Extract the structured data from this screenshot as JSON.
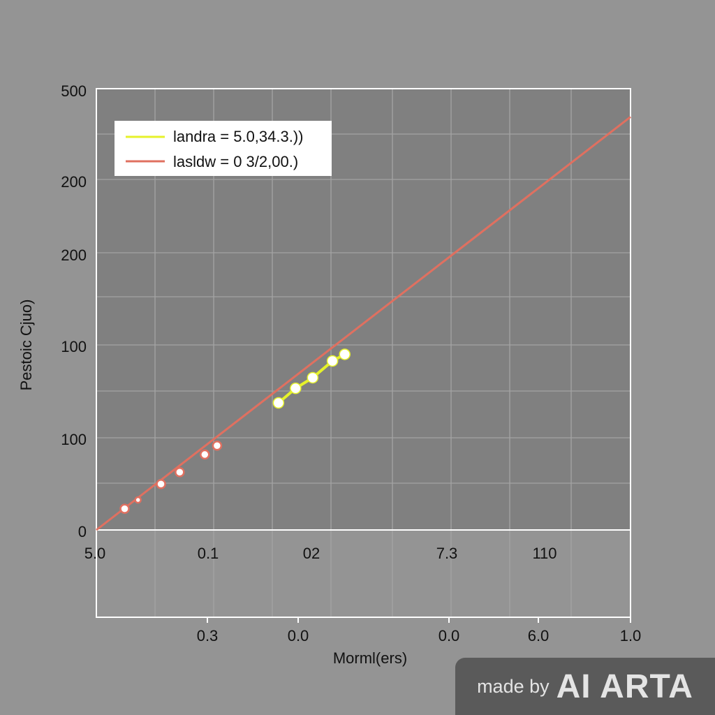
{
  "chart_data": {
    "type": "line",
    "ylabel": "Pestoic Cjuo)",
    "xlabel": "Morml(ers)",
    "y_ticks": [
      "500",
      "200",
      "200",
      "100",
      "100",
      "0"
    ],
    "x_ticks_top": [
      "5.0",
      "0.1",
      "02",
      "7.3",
      "110"
    ],
    "x_ticks_bottom": [
      "0.3",
      "0.0",
      "0.0",
      "6.0",
      "1.0"
    ],
    "xlim": [
      0,
      1
    ],
    "ylim": [
      0,
      1
    ],
    "grid": true,
    "legend_position": "top-left",
    "series": [
      {
        "name": "landra = 5.0,34.3.))",
        "color": "#e6f22a",
        "marker_color": "#ffffff",
        "x": [
          0.341,
          0.373,
          0.405,
          0.442,
          0.465
        ],
        "y": [
          0.288,
          0.321,
          0.345,
          0.383,
          0.398
        ]
      },
      {
        "name": "lasldw = 0 3/2,00.)",
        "color": "#e07060",
        "marker_color": "#ffffff",
        "line": {
          "x": [
            0.0,
            1.0
          ],
          "y": [
            0.0,
            0.936
          ]
        },
        "x": [
          0.053,
          0.078,
          0.121,
          0.156,
          0.203,
          0.226
        ],
        "y": [
          0.048,
          0.068,
          0.104,
          0.131,
          0.171,
          0.191
        ]
      }
    ]
  },
  "watermark": {
    "prefix": "made by",
    "brand": "AI ARTA"
  }
}
